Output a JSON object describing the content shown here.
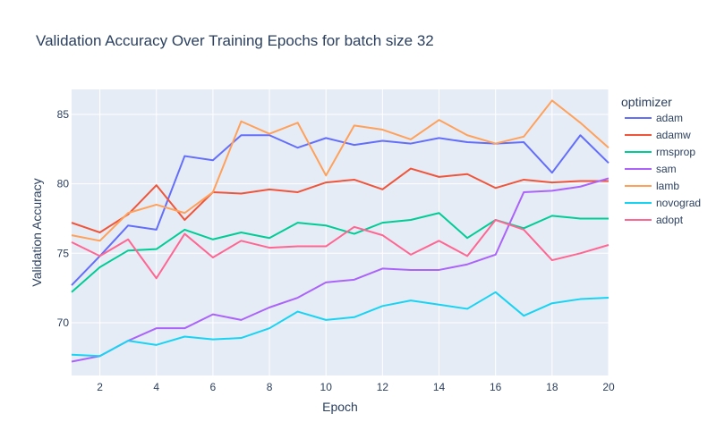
{
  "chart_data": {
    "type": "line",
    "title": "Validation Accuracy Over Training Epochs for batch size 32",
    "xlabel": "Epoch",
    "ylabel": "Validation Accuracy",
    "xlim": [
      1,
      20
    ],
    "ylim": [
      66.2,
      86.8
    ],
    "xticks": [
      2,
      4,
      6,
      8,
      10,
      12,
      14,
      16,
      18,
      20
    ],
    "yticks": [
      70,
      75,
      80,
      85
    ],
    "grid": true,
    "legend_title": "optimizer",
    "legend_position": "right",
    "x": [
      1,
      2,
      3,
      4,
      5,
      6,
      7,
      8,
      9,
      10,
      11,
      12,
      13,
      14,
      15,
      16,
      17,
      18,
      19,
      20
    ],
    "series": [
      {
        "name": "adam",
        "color": "#636efa",
        "values": [
          72.7,
          74.8,
          77.0,
          76.7,
          82.0,
          81.7,
          83.5,
          83.5,
          82.6,
          83.3,
          82.8,
          83.1,
          82.9,
          83.3,
          83.0,
          82.9,
          83.0,
          80.8,
          83.5,
          81.5
        ]
      },
      {
        "name": "adamw",
        "color": "#ef553b",
        "values": [
          77.2,
          76.5,
          77.8,
          79.9,
          77.4,
          79.4,
          79.3,
          79.6,
          79.4,
          80.1,
          80.3,
          79.6,
          81.1,
          80.5,
          80.7,
          79.7,
          80.3,
          80.1,
          80.2,
          80.2
        ]
      },
      {
        "name": "rmsprop",
        "color": "#00cc96",
        "values": [
          72.2,
          74.0,
          75.2,
          75.3,
          76.7,
          76.0,
          76.5,
          76.1,
          77.2,
          77.0,
          76.4,
          77.2,
          77.4,
          77.9,
          76.1,
          77.4,
          76.8,
          77.7,
          77.5,
          77.5
        ]
      },
      {
        "name": "sam",
        "color": "#ab63fa",
        "values": [
          67.2,
          67.6,
          68.7,
          69.6,
          69.6,
          70.6,
          70.2,
          71.1,
          71.8,
          72.9,
          73.1,
          73.9,
          73.8,
          73.8,
          74.2,
          74.9,
          79.4,
          79.5,
          79.8,
          80.4
        ]
      },
      {
        "name": "lamb",
        "color": "#ffa15a",
        "values": [
          76.3,
          75.9,
          77.9,
          78.5,
          77.9,
          79.4,
          84.5,
          83.6,
          84.4,
          80.6,
          84.2,
          83.9,
          83.2,
          84.6,
          83.5,
          82.9,
          83.4,
          86.0,
          84.4,
          82.6
        ]
      },
      {
        "name": "novograd",
        "color": "#19d3f3",
        "values": [
          67.7,
          67.6,
          68.7,
          68.4,
          69.0,
          68.8,
          68.9,
          69.6,
          70.8,
          70.2,
          70.4,
          71.2,
          71.6,
          71.3,
          71.0,
          72.2,
          70.5,
          71.4,
          71.7,
          71.8
        ]
      },
      {
        "name": "adopt",
        "color": "#ff6692",
        "values": [
          75.8,
          74.8,
          76.0,
          73.2,
          76.4,
          74.7,
          75.9,
          75.4,
          75.5,
          75.5,
          76.9,
          76.3,
          74.9,
          75.9,
          74.8,
          77.4,
          76.7,
          74.5,
          75.0,
          75.6
        ]
      }
    ]
  }
}
